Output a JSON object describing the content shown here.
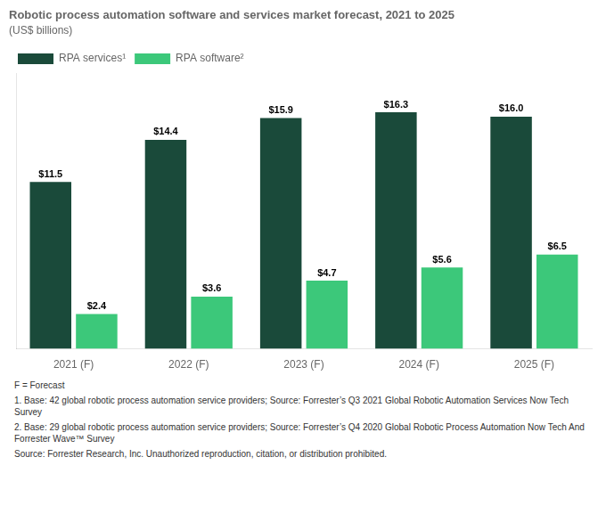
{
  "chart_data": {
    "type": "bar",
    "title": "Robotic process automation software and services market forecast, 2021 to 2025",
    "subtitle": "(US$ billions)",
    "categories": [
      "2021 (F)",
      "2022 (F)",
      "2023 (F)",
      "2024 (F)",
      "2025 (F)"
    ],
    "series": [
      {
        "name": "RPA services¹",
        "color": "#1a4a3a",
        "values": [
          11.5,
          14.4,
          15.9,
          16.3,
          16.0
        ],
        "value_labels": [
          "$11.5",
          "$14.4",
          "$15.9",
          "$16.3",
          "$16.0"
        ]
      },
      {
        "name": "RPA software²",
        "color": "#3cc87a",
        "values": [
          2.4,
          3.6,
          4.7,
          5.6,
          6.5
        ],
        "value_labels": [
          "$2.4",
          "$3.6",
          "$4.7",
          "$5.6",
          "$6.5"
        ]
      }
    ],
    "ylim": [
      0,
      19
    ],
    "tick_labels": "x",
    "grid": false,
    "legend": "upper left",
    "data_labels": true,
    "annotations": [
      "F = Forecast",
      "1. Base: 42 global robotic process automation service providers; Source: Forrester’s Q3 2021 Global Robotic Automation Services Now Tech Survey",
      "2. Base: 29 global robotic process automation service providers; Source: Forrester’s Q4 2020 Global Robotic Process Automation Now Tech And Forrester Wave™ Survey",
      "Source: Forrester Research, Inc. Unauthorized reproduction, citation, or distribution prohibited."
    ]
  }
}
